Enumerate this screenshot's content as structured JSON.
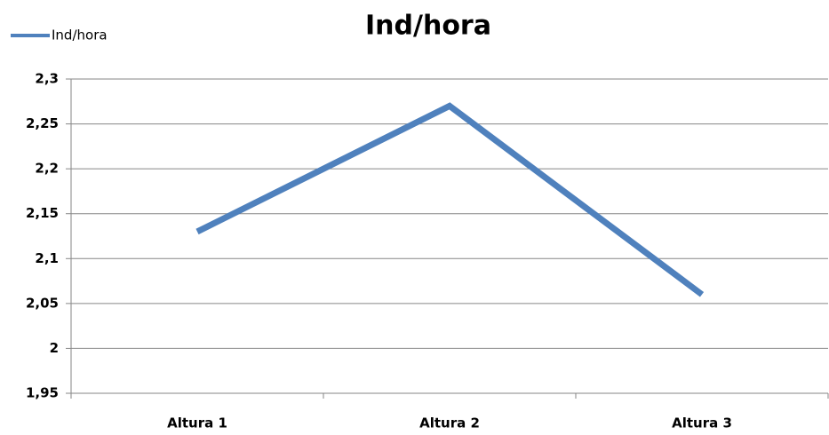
{
  "chart_data": {
    "type": "line",
    "title": "Ind/hora",
    "categories": [
      "Altura 1",
      "Altura 2",
      "Altura 3"
    ],
    "series": [
      {
        "name": "Ind/hora",
        "color": "#4f81bd",
        "values": [
          2.13,
          2.27,
          2.06
        ]
      }
    ],
    "ylim": [
      1.95,
      2.3
    ],
    "yticks": [
      {
        "value": 1.95,
        "label": "1,95"
      },
      2,
      {
        "value": 2.05,
        "label": "2,05"
      },
      {
        "value": 2.1,
        "label": "2,1"
      },
      {
        "value": 2.15,
        "label": "2,15"
      },
      {
        "value": 2.2,
        "label": "2,2"
      },
      {
        "value": 2.25,
        "label": "2,25"
      },
      {
        "value": 2.3,
        "label": "2,3"
      }
    ],
    "grid": true,
    "legend": "top-left"
  }
}
